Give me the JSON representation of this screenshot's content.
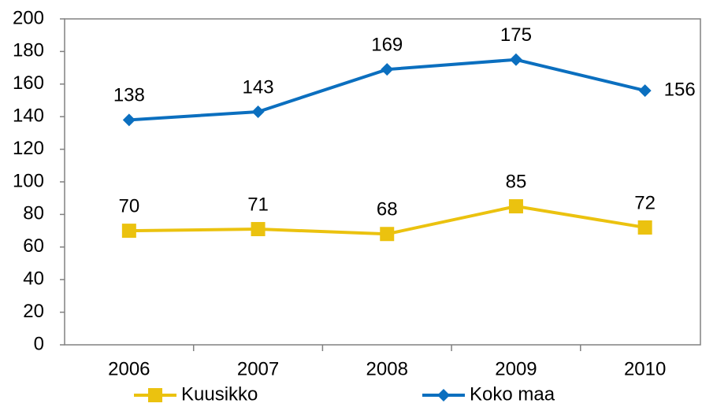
{
  "chart_data": {
    "type": "line",
    "categories": [
      "2006",
      "2007",
      "2008",
      "2009",
      "2010"
    ],
    "series": [
      {
        "name": "Kuusikko",
        "color": "#EBC20F",
        "marker": "square",
        "values": [
          70,
          71,
          68,
          85,
          72
        ]
      },
      {
        "name": "Koko maa",
        "color": "#0B6FBF",
        "marker": "diamond",
        "values": [
          138,
          143,
          169,
          175,
          156
        ]
      }
    ],
    "ylim": [
      0,
      200
    ],
    "yticks": [
      0,
      20,
      40,
      60,
      80,
      100,
      120,
      140,
      160,
      180,
      200
    ],
    "grid": false,
    "legend": "bottom"
  }
}
